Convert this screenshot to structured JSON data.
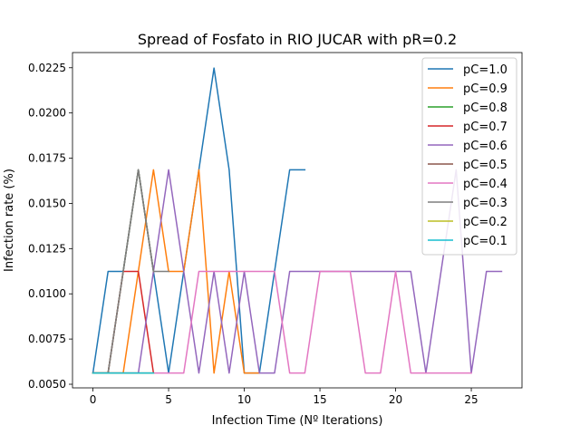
{
  "chart_data": {
    "type": "line",
    "title": "Spread of Fosfato in RIO JUCAR with pR=0.2",
    "xlabel": "Infection Time (Nº Iterations)",
    "ylabel": "Infection rate (%)",
    "xlim": [
      -1.35,
      28.35
    ],
    "ylim": [
      0.0048,
      0.02334
    ],
    "xticks": [
      0,
      5,
      10,
      15,
      20,
      25
    ],
    "yticks": [
      0.005,
      0.0075,
      0.01,
      0.0125,
      0.015,
      0.0175,
      0.02,
      0.0225
    ],
    "ytick_labels": [
      "0.0050",
      "0.0075",
      "0.0100",
      "0.0125",
      "0.0150",
      "0.0175",
      "0.0200",
      "0.0225"
    ],
    "grid": false,
    "legend_position": "top-right",
    "series": [
      {
        "name": "pC=1.0",
        "color": "#1f77b4",
        "x": [
          0,
          1,
          2,
          3,
          4,
          5,
          6,
          7,
          8,
          9,
          10,
          11,
          12,
          13,
          14
        ],
        "y": [
          0.00562,
          0.01124,
          0.01124,
          0.01686,
          0.01124,
          0.00562,
          0.01124,
          0.01686,
          0.02248,
          0.01686,
          0.00562,
          0.00562,
          0.01124,
          0.01686,
          0.01686
        ]
      },
      {
        "name": "pC=0.9",
        "color": "#ff7f0e",
        "x": [
          0,
          1,
          2,
          3,
          4,
          5,
          6,
          7,
          8,
          9,
          10,
          11
        ],
        "y": [
          0.00562,
          0.00562,
          0.00562,
          0.01124,
          0.01686,
          0.01124,
          0.01124,
          0.01686,
          0.00562,
          0.01124,
          0.00562,
          0.00562
        ]
      },
      {
        "name": "pC=0.8",
        "color": "#2ca02c",
        "x": [
          0,
          1,
          2,
          3,
          4
        ],
        "y": [
          0.00562,
          0.00562,
          0.01124,
          0.01686,
          0.01124
        ]
      },
      {
        "name": "pC=0.7",
        "color": "#d62728",
        "x": [
          0,
          1,
          2,
          3,
          4
        ],
        "y": [
          0.00562,
          0.00562,
          0.01124,
          0.01124,
          0.00562
        ]
      },
      {
        "name": "pC=0.6",
        "color": "#9467bd",
        "x": [
          0,
          1,
          2,
          3,
          4,
          5,
          6,
          7,
          8,
          9,
          10,
          11,
          12,
          13,
          14,
          15,
          16,
          17,
          18,
          19,
          20,
          21,
          22,
          23,
          24,
          25,
          26,
          27
        ],
        "y": [
          0.00562,
          0.00562,
          0.00562,
          0.00562,
          0.01124,
          0.01686,
          0.01124,
          0.00562,
          0.01124,
          0.00562,
          0.01124,
          0.00562,
          0.00562,
          0.01124,
          0.01124,
          0.01124,
          0.01124,
          0.01124,
          0.01124,
          0.01124,
          0.01124,
          0.01124,
          0.00562,
          0.01124,
          0.01686,
          0.00562,
          0.01124,
          0.01124
        ]
      },
      {
        "name": "pC=0.5",
        "color": "#8c564b",
        "x": [
          0,
          1,
          2,
          3,
          4
        ],
        "y": [
          0.00562,
          0.00562,
          0.01124,
          0.01686,
          0.01124
        ]
      },
      {
        "name": "pC=0.4",
        "color": "#e377c2",
        "x": [
          0,
          1,
          2,
          3,
          4,
          5,
          6,
          7,
          8,
          9,
          10,
          11,
          12,
          13,
          14,
          15,
          16,
          17,
          18,
          19,
          20,
          21,
          22,
          23,
          24,
          25
        ],
        "y": [
          0.00562,
          0.00562,
          0.00562,
          0.00562,
          0.00562,
          0.00562,
          0.00562,
          0.01124,
          0.01124,
          0.01124,
          0.01124,
          0.01124,
          0.01124,
          0.00562,
          0.00562,
          0.01124,
          0.01124,
          0.01124,
          0.00562,
          0.00562,
          0.01124,
          0.00562,
          0.00562,
          0.00562,
          0.00562,
          0.00562
        ]
      },
      {
        "name": "pC=0.3",
        "color": "#7f7f7f",
        "x": [
          0,
          1,
          2,
          3,
          4,
          5
        ],
        "y": [
          0.00562,
          0.00562,
          0.01124,
          0.01686,
          0.01124,
          0.01124
        ]
      },
      {
        "name": "pC=0.2",
        "color": "#bcbd22",
        "x": [
          0,
          1,
          2,
          3,
          4
        ],
        "y": [
          0.00562,
          0.00562,
          0.00562,
          0.00562,
          0.00562
        ]
      },
      {
        "name": "pC=0.1",
        "color": "#17becf",
        "x": [
          0,
          1,
          2,
          3,
          4
        ],
        "y": [
          0.00562,
          0.00562,
          0.00562,
          0.00562,
          0.00562
        ]
      }
    ]
  }
}
